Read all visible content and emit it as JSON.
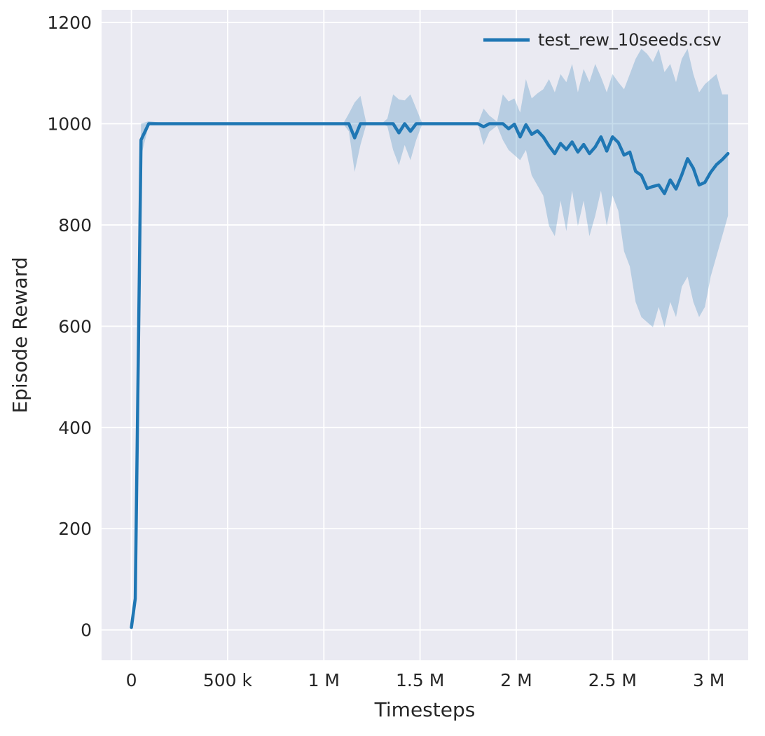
{
  "chart_data": {
    "type": "line",
    "title": "",
    "xlabel": "Timesteps",
    "ylabel": "Episode Reward",
    "x_unit": "millions of timesteps",
    "xlim": [
      -0.155,
      3.205
    ],
    "ylim": [
      -60,
      1225
    ],
    "grid": true,
    "legend_position": "upper right",
    "colors": {
      "axes_background": "#eaeaf2",
      "figure_background": "#ffffff",
      "gridline": "#ffffff",
      "line": "#1f77b4",
      "band": "#1f77b4",
      "text": "#262626"
    },
    "band_opacity": 0.25,
    "xticks": [
      {
        "v": 0,
        "label": "0"
      },
      {
        "v": 0.5,
        "label": "500 k"
      },
      {
        "v": 1.0,
        "label": "1 M"
      },
      {
        "v": 1.5,
        "label": "1.5 M"
      },
      {
        "v": 2.0,
        "label": "2 M"
      },
      {
        "v": 2.5,
        "label": "2.5 M"
      },
      {
        "v": 3.0,
        "label": "3 M"
      }
    ],
    "yticks": [
      {
        "v": 0,
        "label": "0"
      },
      {
        "v": 200,
        "label": "200"
      },
      {
        "v": 400,
        "label": "400"
      },
      {
        "v": 600,
        "label": "600"
      },
      {
        "v": 800,
        "label": "800"
      },
      {
        "v": 1000,
        "label": "1000"
      },
      {
        "v": 1200,
        "label": "1200"
      }
    ],
    "series": [
      {
        "name": "test_rew_10seeds.csv",
        "points_columns": [
          "x_millions",
          "mean",
          "lo",
          "hi"
        ],
        "points": [
          [
            0.0,
            5,
            2,
            8
          ],
          [
            0.02,
            62,
            40,
            85
          ],
          [
            0.05,
            968,
            935,
            1000
          ],
          [
            0.09,
            1000,
            997,
            1005
          ],
          [
            0.2,
            1000,
            1000,
            1000
          ],
          [
            0.4,
            1000,
            1000,
            1000
          ],
          [
            0.6,
            1000,
            1000,
            1000
          ],
          [
            0.8,
            1000,
            1000,
            1000
          ],
          [
            1.0,
            1000,
            1000,
            1000
          ],
          [
            1.1,
            1000,
            1000,
            1000
          ],
          [
            1.13,
            1000,
            985,
            1020
          ],
          [
            1.16,
            972,
            905,
            1042
          ],
          [
            1.19,
            1000,
            958,
            1055
          ],
          [
            1.22,
            1000,
            998,
            1002
          ],
          [
            1.3,
            1000,
            1000,
            1000
          ],
          [
            1.33,
            1000,
            995,
            1010
          ],
          [
            1.36,
            1000,
            948,
            1058
          ],
          [
            1.39,
            982,
            918,
            1048
          ],
          [
            1.42,
            1000,
            958,
            1046
          ],
          [
            1.45,
            985,
            928,
            1058
          ],
          [
            1.48,
            1000,
            968,
            1030
          ],
          [
            1.51,
            1000,
            998,
            1002
          ],
          [
            1.6,
            1000,
            1000,
            1000
          ],
          [
            1.7,
            1000,
            1000,
            1000
          ],
          [
            1.8,
            1000,
            1000,
            1000
          ],
          [
            1.83,
            994,
            958,
            1030
          ],
          [
            1.86,
            1000,
            984,
            1016
          ],
          [
            1.9,
            1000,
            996,
            1004
          ],
          [
            1.93,
            1000,
            968,
            1058
          ],
          [
            1.96,
            990,
            948,
            1044
          ],
          [
            1.99,
            999,
            938,
            1050
          ],
          [
            2.02,
            974,
            928,
            1022
          ],
          [
            2.05,
            998,
            948,
            1088
          ],
          [
            2.08,
            979,
            898,
            1050
          ],
          [
            2.11,
            986,
            878,
            1060
          ],
          [
            2.14,
            974,
            858,
            1068
          ],
          [
            2.17,
            956,
            798,
            1088
          ],
          [
            2.2,
            941,
            778,
            1062
          ],
          [
            2.23,
            961,
            848,
            1098
          ],
          [
            2.26,
            949,
            788,
            1082
          ],
          [
            2.29,
            964,
            868,
            1118
          ],
          [
            2.32,
            944,
            798,
            1062
          ],
          [
            2.35,
            959,
            848,
            1108
          ],
          [
            2.38,
            941,
            778,
            1082
          ],
          [
            2.41,
            954,
            818,
            1118
          ],
          [
            2.44,
            974,
            868,
            1092
          ],
          [
            2.47,
            946,
            798,
            1062
          ],
          [
            2.5,
            974,
            858,
            1098
          ],
          [
            2.53,
            963,
            828,
            1082
          ],
          [
            2.56,
            938,
            748,
            1068
          ],
          [
            2.59,
            944,
            718,
            1098
          ],
          [
            2.62,
            906,
            648,
            1128
          ],
          [
            2.65,
            898,
            618,
            1148
          ],
          [
            2.68,
            872,
            608,
            1138
          ],
          [
            2.71,
            876,
            598,
            1122
          ],
          [
            2.74,
            879,
            638,
            1148
          ],
          [
            2.77,
            862,
            598,
            1102
          ],
          [
            2.8,
            889,
            648,
            1118
          ],
          [
            2.83,
            871,
            618,
            1082
          ],
          [
            2.86,
            899,
            678,
            1128
          ],
          [
            2.89,
            931,
            698,
            1148
          ],
          [
            2.92,
            912,
            648,
            1098
          ],
          [
            2.95,
            879,
            618,
            1062
          ],
          [
            2.98,
            884,
            638,
            1078
          ],
          [
            3.01,
            904,
            698,
            1088
          ],
          [
            3.04,
            919,
            738,
            1098
          ],
          [
            3.07,
            929,
            778,
            1058
          ],
          [
            3.1,
            941,
            818,
            1058
          ]
        ]
      }
    ],
    "legend": [
      {
        "label": "test_rew_10seeds.csv",
        "color": "#1f77b4"
      }
    ]
  }
}
